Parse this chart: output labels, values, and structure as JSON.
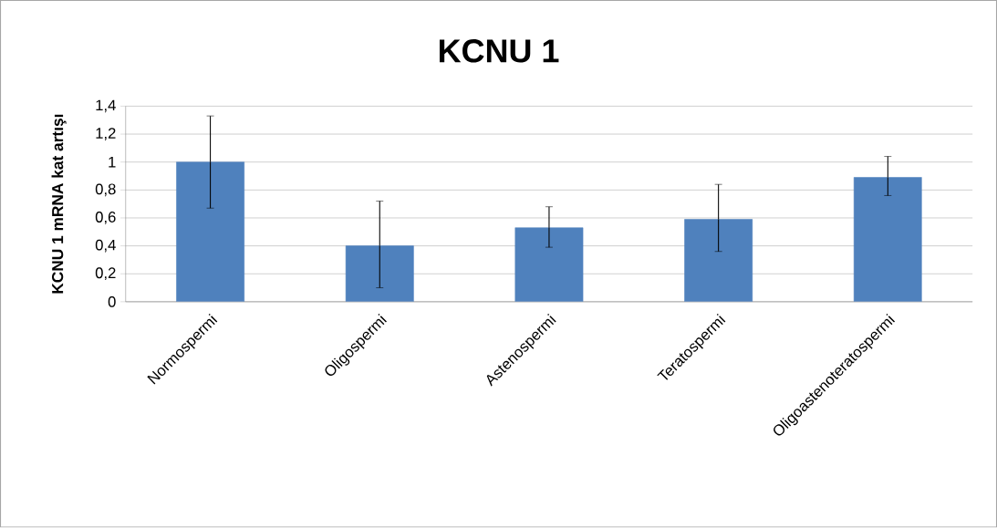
{
  "chart_data": {
    "type": "bar",
    "title": "KCNU 1",
    "ylabel": "KCNU 1 mRNA kat artışı",
    "categories": [
      "Normospermi",
      "Oligospermi",
      "Astenospermi",
      "Teratospermi",
      "Oligoastenoteratospermi"
    ],
    "values": [
      1.0,
      0.4,
      0.53,
      0.59,
      0.89
    ],
    "errors": [
      [
        0.67,
        1.33
      ],
      [
        0.1,
        0.72
      ],
      [
        0.39,
        0.68
      ],
      [
        0.36,
        0.84
      ],
      [
        0.76,
        1.04
      ]
    ],
    "color": "#4f81bd",
    "ylim": [
      0,
      1.4
    ],
    "yticks": [
      {
        "value": 0,
        "label": "0"
      },
      {
        "value": 0.2,
        "label": "0,2"
      },
      {
        "value": 0.4,
        "label": "0,4"
      },
      {
        "value": 0.6,
        "label": "0,6"
      },
      {
        "value": 0.8,
        "label": "0,8"
      },
      {
        "value": 1,
        "label": "1"
      },
      {
        "value": 1.2,
        "label": "1,2"
      },
      {
        "value": 1.4,
        "label": "1,4"
      }
    ],
    "grid": "y"
  }
}
